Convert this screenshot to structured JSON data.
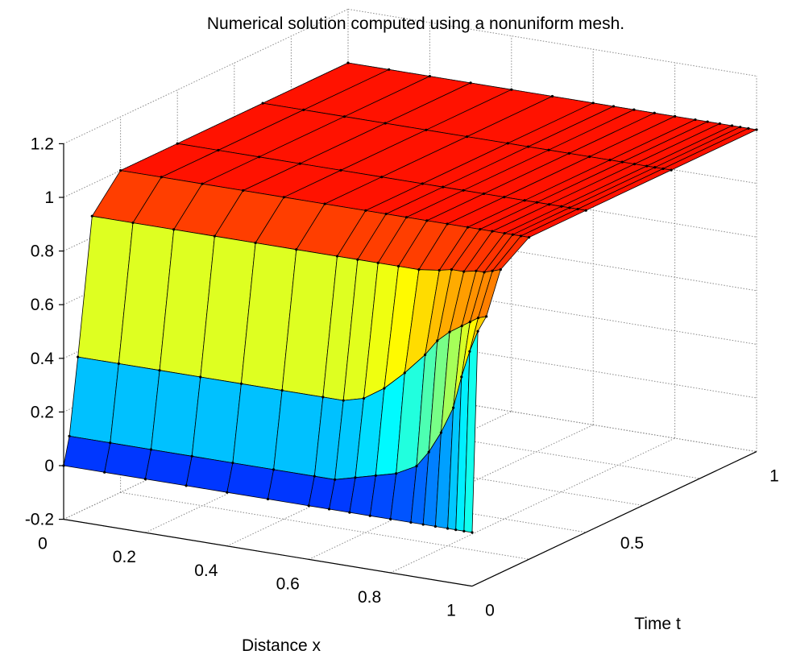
{
  "chart_data": {
    "type": "surface",
    "title": "Numerical solution computed using a nonuniform mesh.",
    "xlabel": "Distance x",
    "ylabel": "Time t",
    "zlabel": "",
    "xlim": [
      0,
      1
    ],
    "ylim": [
      0,
      1
    ],
    "zlim": [
      -0.2,
      1.2
    ],
    "grid": true,
    "colormap": "jet",
    "x_ticks": [
      "0",
      "0.2",
      "0.4",
      "0.6",
      "0.8",
      "1"
    ],
    "y_ticks": [
      "0",
      "0.5",
      "1"
    ],
    "z_ticks": [
      "-0.2",
      "0",
      "0.2",
      "0.4",
      "0.6",
      "0.8",
      "1",
      "1.2"
    ],
    "x": [
      0.0,
      0.1,
      0.2,
      0.3,
      0.4,
      0.5,
      0.6,
      0.65,
      0.7,
      0.75,
      0.8,
      0.85,
      0.88,
      0.91,
      0.94,
      0.96,
      0.98,
      1.0
    ],
    "t": [
      0.0,
      0.02,
      0.05,
      0.1,
      0.2,
      0.4,
      0.7,
      1.0
    ],
    "u": [
      [
        0.0,
        0.0,
        0.0,
        0.0,
        0.0,
        0.0,
        0.0,
        0.0,
        0.0,
        0.0,
        0.0,
        0.0,
        0.0,
        0.0,
        0.0,
        0.0,
        0.0,
        0.0
      ],
      [
        0.1,
        0.1,
        0.1,
        0.1,
        0.1,
        0.1,
        0.1,
        0.1,
        0.12,
        0.14,
        0.16,
        0.2,
        0.26,
        0.34,
        0.44,
        0.56,
        0.66,
        0.74
      ],
      [
        0.38,
        0.38,
        0.38,
        0.38,
        0.38,
        0.38,
        0.38,
        0.38,
        0.4,
        0.45,
        0.52,
        0.6,
        0.66,
        0.7,
        0.73,
        0.75,
        0.77,
        0.78
      ],
      [
        0.88,
        0.88,
        0.88,
        0.88,
        0.88,
        0.88,
        0.88,
        0.88,
        0.88,
        0.88,
        0.88,
        0.89,
        0.9,
        0.9,
        0.91,
        0.91,
        0.92,
        0.93
      ],
      [
        1.0,
        1.0,
        1.0,
        1.0,
        1.0,
        1.0,
        1.0,
        1.0,
        1.0,
        1.0,
        1.0,
        1.0,
        1.0,
        1.0,
        1.0,
        1.0,
        1.0,
        1.0
      ],
      [
        1.0,
        1.0,
        1.0,
        1.0,
        1.0,
        1.0,
        1.0,
        1.0,
        1.0,
        1.0,
        1.0,
        1.0,
        1.0,
        1.0,
        1.0,
        1.0,
        1.0,
        1.0
      ],
      [
        1.0,
        1.0,
        1.0,
        1.0,
        1.0,
        1.0,
        1.0,
        1.0,
        1.0,
        1.0,
        1.0,
        1.0,
        1.0,
        1.0,
        1.0,
        1.0,
        1.0,
        1.0
      ],
      [
        1.0,
        1.0,
        1.0,
        1.0,
        1.0,
        1.0,
        1.0,
        1.0,
        1.0,
        1.0,
        1.0,
        1.0,
        1.0,
        1.0,
        1.0,
        1.0,
        1.0,
        1.0
      ]
    ]
  }
}
